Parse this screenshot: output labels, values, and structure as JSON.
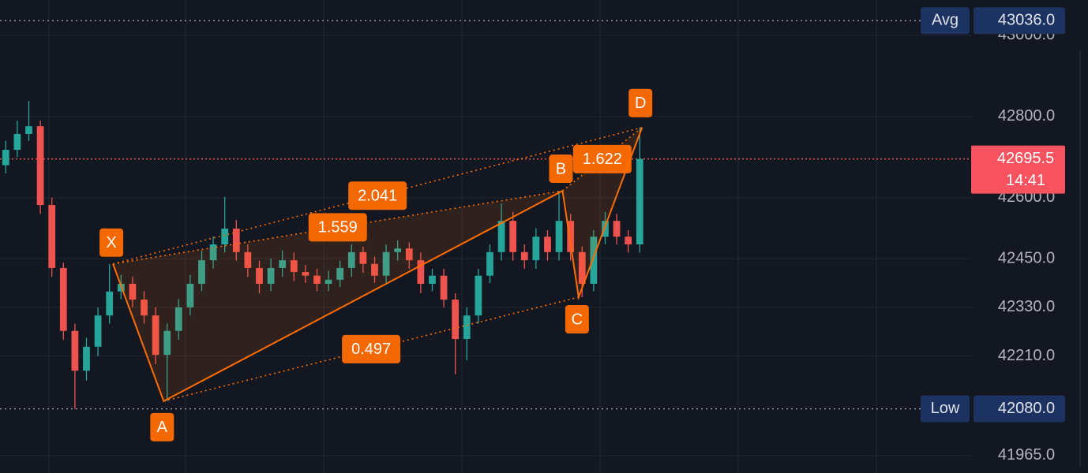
{
  "chart_data": {
    "type": "candlestick",
    "xlim": [
      -0.5,
      83.75
    ],
    "ylim": [
      41922,
      43087
    ],
    "yticks": [
      {
        "value": 43000,
        "label": "43000.0"
      },
      {
        "value": 42800,
        "label": "42800.0"
      },
      {
        "value": 42600,
        "label": "42600.0"
      },
      {
        "value": 42450,
        "label": "42450.0"
      },
      {
        "value": 42330,
        "label": "42330.0"
      },
      {
        "value": 42210,
        "label": "42210.0"
      },
      {
        "value": 41965,
        "label": "41965.0"
      }
    ],
    "grid": true,
    "up_color": "#26a69a",
    "down_color": "#ef5350",
    "open": [
      42680,
      42718,
      42757,
      42776,
      42582,
      42427,
      42272,
      42174,
      42233,
      42310,
      42369,
      42388,
      42349,
      42310,
      42213,
      42272,
      42330,
      42388,
      42446,
      42485,
      42524,
      42466,
      42427,
      42388,
      42427,
      42446,
      42417,
      42408,
      42388,
      42398,
      42427,
      42466,
      42437,
      42408,
      42466,
      42475,
      42446,
      42388,
      42408,
      42349,
      42252,
      42310,
      42408,
      42466,
      42543,
      42466,
      42446,
      42504,
      42466,
      42543,
      42466,
      42388,
      42504,
      42543,
      42504,
      42485
    ],
    "high": [
      42740,
      42790,
      42838,
      42790,
      42600,
      42440,
      42290,
      42255,
      42330,
      42437,
      42410,
      42405,
      42370,
      42330,
      42290,
      42350,
      42410,
      42470,
      42505,
      42602,
      42545,
      42485,
      42445,
      42450,
      42470,
      42465,
      42435,
      42425,
      42420,
      42445,
      42485,
      42480,
      42455,
      42485,
      42495,
      42490,
      42465,
      42425,
      42425,
      42365,
      42330,
      42425,
      42485,
      42586,
      42565,
      42485,
      42525,
      42520,
      42617,
      42560,
      42480,
      42520,
      42565,
      42560,
      42520,
      42773
    ],
    "low": [
      42660,
      42700,
      42740,
      42560,
      42405,
      42250,
      42080,
      42150,
      42210,
      42290,
      42350,
      42330,
      42290,
      42190,
      42099,
      42250,
      42310,
      42370,
      42425,
      42465,
      42445,
      42405,
      42365,
      42370,
      42405,
      42395,
      42390,
      42370,
      42370,
      42380,
      42405,
      42415,
      42390,
      42390,
      42445,
      42425,
      42365,
      42370,
      42330,
      42165,
      42200,
      42290,
      42390,
      42445,
      42445,
      42425,
      42425,
      42445,
      42445,
      42445,
      42355,
      42370,
      42485,
      42485,
      42465,
      42465
    ],
    "close": [
      42718,
      42757,
      42776,
      42582,
      42427,
      42272,
      42174,
      42233,
      42310,
      42369,
      42388,
      42349,
      42310,
      42213,
      42272,
      42330,
      42388,
      42446,
      42485,
      42524,
      42466,
      42427,
      42388,
      42427,
      42446,
      42417,
      42408,
      42388,
      42398,
      42427,
      42466,
      42437,
      42408,
      42466,
      42475,
      42446,
      42388,
      42408,
      42349,
      42252,
      42310,
      42408,
      42466,
      42543,
      42466,
      42446,
      42504,
      42466,
      42543,
      42466,
      42388,
      42504,
      42543,
      42504,
      42485,
      42695.5
    ],
    "price_lines": [
      {
        "name": "Avg",
        "value": 43036,
        "label": "43036.0"
      },
      {
        "name": "Low",
        "value": 42080,
        "label": "42080.0"
      }
    ],
    "last_price": {
      "value": 42695.5,
      "label": "42695.5",
      "countdown": "14:41"
    },
    "pattern": {
      "color": "#ff6d00",
      "points": [
        {
          "label": "X",
          "x": 9.3,
          "y": 42437
        },
        {
          "label": "A",
          "x": 13.7,
          "y": 42099
        },
        {
          "label": "B",
          "x": 48.3,
          "y": 42617
        },
        {
          "label": "C",
          "x": 49.7,
          "y": 42355
        },
        {
          "label": "D",
          "x": 55.2,
          "y": 42773
        }
      ],
      "ratios": [
        1.559,
        2.041,
        0.497,
        1.622
      ]
    }
  }
}
